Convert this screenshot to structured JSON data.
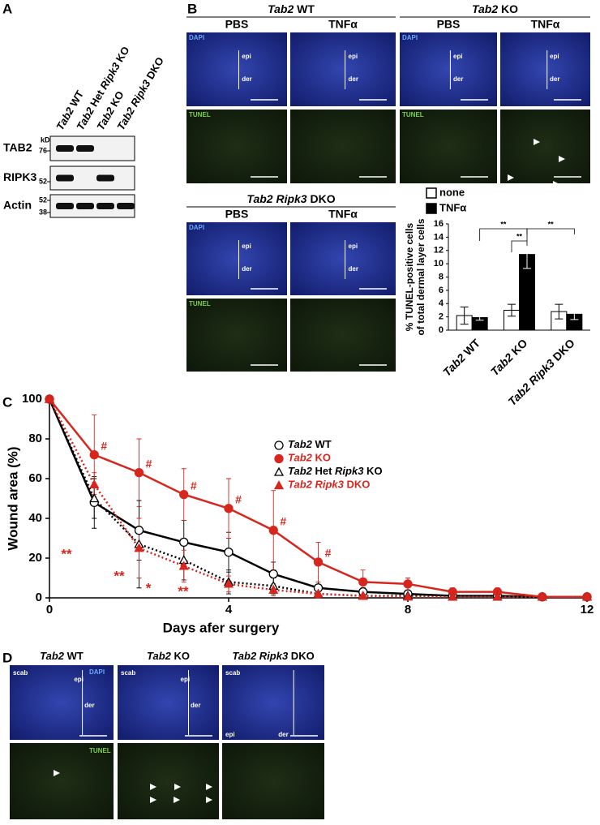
{
  "panel_labels": [
    "A",
    "B",
    "C",
    "D"
  ],
  "panel_a": {
    "lanes": [
      "Tab2 WT",
      "Tab2 Het Ripk3 KO",
      "Tab2 KO",
      "Tab2 Ripk3 DKO"
    ],
    "marker_unit": "kD",
    "rows": [
      {
        "name": "TAB2",
        "markers": [
          "76"
        ]
      },
      {
        "name": "RIPK3",
        "markers": [
          "52"
        ]
      },
      {
        "name": "Actin",
        "markers": [
          "52",
          "38"
        ]
      }
    ]
  },
  "panel_b": {
    "groups": [
      {
        "title": "Tab2 WT",
        "columns": [
          "PBS",
          "TNFα"
        ]
      },
      {
        "title": "Tab2 KO",
        "columns": [
          "PBS",
          "TNFα"
        ]
      },
      {
        "title": "Tab2 Ripk3 DKO",
        "columns": [
          "PBS",
          "TNFα"
        ]
      }
    ],
    "stains": [
      "DAPI",
      "TUNEL"
    ],
    "layers": [
      "epi",
      "der"
    ]
  },
  "panel_d": {
    "columns": [
      "Tab2 WT",
      "Tab2 KO",
      "Tab2 Ripk3 DKO"
    ],
    "stains": [
      "DAPI",
      "TUNEL"
    ],
    "layers": [
      "scab",
      "epi",
      "der"
    ]
  },
  "chart_data": [
    {
      "type": "bar",
      "ylabel": [
        "% TUNEL-positive cells",
        "of total dermal layer cells"
      ],
      "categories": [
        "Tab2 WT",
        "Tab2 KO",
        "Tab2 Ripk3 DKO"
      ],
      "series": [
        {
          "name": "none",
          "color": "#ffffff",
          "values": [
            2.2,
            3.0,
            2.8
          ],
          "errors": [
            1.3,
            0.9,
            1.1
          ]
        },
        {
          "name": "TNFα",
          "color": "#000000",
          "values": [
            1.9,
            11.4,
            2.4
          ],
          "errors": [
            0.4,
            2.1,
            0.8
          ]
        }
      ],
      "ylim": [
        0,
        16
      ],
      "yticks": [
        0,
        2,
        4,
        6,
        8,
        10,
        12,
        14,
        16
      ],
      "annotations": [
        "**",
        "**",
        "**"
      ]
    },
    {
      "type": "line",
      "xlabel": "Days afer surgery",
      "ylabel": "Wound area (%)",
      "x": [
        0,
        1,
        2,
        3,
        4,
        5,
        6,
        7,
        8,
        9,
        10,
        11,
        12
      ],
      "xlim": [
        0,
        12
      ],
      "xticks": [
        0,
        4,
        8,
        12
      ],
      "ylim": [
        0,
        100
      ],
      "yticks": [
        0,
        20,
        40,
        60,
        80,
        100
      ],
      "series": [
        {
          "name": "Tab2 WT",
          "color": "#000000",
          "linestyle": "solid",
          "marker": "circle",
          "filled": false,
          "values": [
            100,
            48,
            34,
            28,
            23,
            12,
            5,
            3,
            2,
            1,
            1,
            0.5,
            0.5
          ],
          "errors": [
            0,
            13,
            15,
            11,
            10,
            6,
            3,
            2,
            1,
            1,
            0.5,
            0.3,
            0.3
          ]
        },
        {
          "name": "Tab2 KO",
          "color": "#d7261e",
          "linestyle": "solid",
          "marker": "circle",
          "filled": true,
          "values": [
            100,
            72,
            63,
            52,
            45,
            34,
            18,
            8,
            7,
            3,
            3,
            0.5,
            0.5
          ],
          "errors": [
            0,
            20,
            17,
            13,
            15,
            20,
            10,
            6,
            3,
            2,
            2,
            0.5,
            0.5
          ]
        },
        {
          "name": "Tab2 Het Ripk3 KO",
          "color": "#000000",
          "linestyle": "dotted",
          "marker": "triangle",
          "filled": false,
          "values": [
            100,
            50,
            27,
            19,
            8,
            6,
            2,
            1,
            1,
            0.5,
            0.5,
            0.5,
            0.5
          ],
          "errors": [
            0,
            10,
            22,
            10,
            6,
            4,
            2,
            1,
            1,
            0.5,
            0.3,
            0.3,
            0.3
          ]
        },
        {
          "name": "Tab2 Ripk3 DKO",
          "color": "#d7261e",
          "linestyle": "dotted",
          "marker": "triangle",
          "filled": true,
          "values": [
            100,
            57,
            25,
            16,
            7,
            4,
            2,
            1,
            0.5,
            0.5,
            0.5,
            0.5,
            0.5
          ],
          "errors": [
            0,
            6,
            15,
            8,
            4,
            3,
            2,
            1,
            0.5,
            0.5,
            0.3,
            0.3,
            0.3
          ]
        }
      ],
      "annotations": [
        "#",
        "#",
        "#",
        "#",
        "#",
        "#",
        "**",
        "**",
        "*",
        "**"
      ]
    }
  ]
}
